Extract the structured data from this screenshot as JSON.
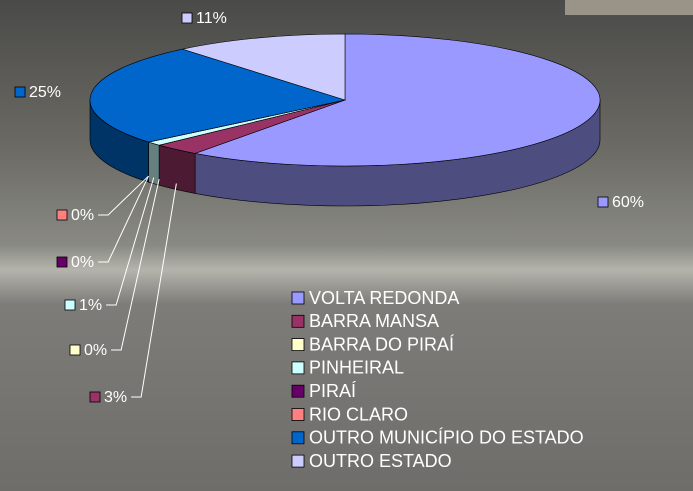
{
  "chart_data": {
    "type": "pie",
    "categories": [
      "VOLTA REDONDA",
      "BARRA MANSA",
      "BARRA DO PIRAÍ",
      "PINHEIRAL",
      "PIRAÍ",
      "RIO CLARO",
      "OUTRO MUNICÍPIO DO ESTADO",
      "OUTRO ESTADO"
    ],
    "values": [
      60,
      3,
      0,
      1,
      0,
      0,
      25,
      11
    ],
    "value_labels": [
      "60%",
      "3%",
      "0%",
      "1%",
      "0%",
      "0%",
      "25%",
      "11%"
    ],
    "colors": [
      "#9999ff",
      "#993366",
      "#ffffcc",
      "#ccffff",
      "#660066",
      "#ff8080",
      "#0066cc",
      "#ccccff"
    ],
    "legend": "bottom-right"
  }
}
